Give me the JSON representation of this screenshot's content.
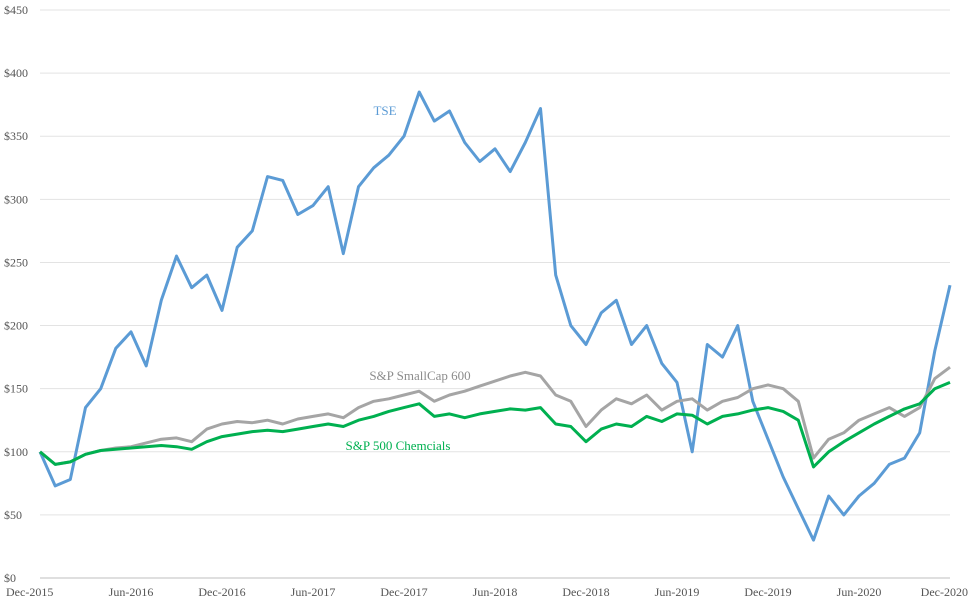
{
  "chart_data": {
    "type": "line",
    "title": "",
    "xlabel": "",
    "ylabel": "",
    "ylim": [
      0,
      450
    ],
    "yticks": [
      0,
      50,
      100,
      150,
      200,
      250,
      300,
      350,
      400,
      450
    ],
    "ytick_labels": [
      "$0",
      "$50",
      "$100",
      "$150",
      "$200",
      "$250",
      "$300",
      "$350",
      "$400",
      "$450"
    ],
    "xlim": [
      "2015-12",
      "2020-12"
    ],
    "xtick_labels": [
      "Dec-2015",
      "Jun-2016",
      "Dec-2016",
      "Jun-2017",
      "Dec-2017",
      "Jun-2018",
      "Dec-2018",
      "Jun-2019",
      "Dec-2019",
      "Jun-2020",
      "Dec-2020"
    ],
    "grid": "horizontal",
    "legend": "none",
    "series": [
      {
        "name": "TSE",
        "color": "#5b9bd5",
        "points": [
          [
            "2015-12",
            100
          ],
          [
            "2016-01",
            73
          ],
          [
            "2016-02",
            78
          ],
          [
            "2016-03",
            135
          ],
          [
            "2016-04",
            150
          ],
          [
            "2016-05",
            182
          ],
          [
            "2016-06",
            195
          ],
          [
            "2016-07",
            168
          ],
          [
            "2016-08",
            220
          ],
          [
            "2016-09",
            255
          ],
          [
            "2016-10",
            230
          ],
          [
            "2016-11",
            240
          ],
          [
            "2016-12",
            212
          ],
          [
            "2017-01",
            262
          ],
          [
            "2017-02",
            275
          ],
          [
            "2017-03",
            318
          ],
          [
            "2017-04",
            315
          ],
          [
            "2017-05",
            288
          ],
          [
            "2017-06",
            295
          ],
          [
            "2017-07",
            310
          ],
          [
            "2017-08",
            257
          ],
          [
            "2017-09",
            310
          ],
          [
            "2017-10",
            325
          ],
          [
            "2017-11",
            335
          ],
          [
            "2017-12",
            350
          ],
          [
            "2018-01",
            385
          ],
          [
            "2018-02",
            362
          ],
          [
            "2018-03",
            370
          ],
          [
            "2018-04",
            345
          ],
          [
            "2018-05",
            330
          ],
          [
            "2018-06",
            340
          ],
          [
            "2018-07",
            322
          ],
          [
            "2018-08",
            345
          ],
          [
            "2018-09",
            372
          ],
          [
            "2018-10",
            240
          ],
          [
            "2018-11",
            200
          ],
          [
            "2018-12",
            185
          ],
          [
            "2019-01",
            210
          ],
          [
            "2019-02",
            220
          ],
          [
            "2019-03",
            185
          ],
          [
            "2019-04",
            200
          ],
          [
            "2019-05",
            170
          ],
          [
            "2019-06",
            155
          ],
          [
            "2019-07",
            100
          ],
          [
            "2019-08",
            185
          ],
          [
            "2019-09",
            175
          ],
          [
            "2019-10",
            200
          ],
          [
            "2019-11",
            140
          ],
          [
            "2019-12",
            110
          ],
          [
            "2020-01",
            80
          ],
          [
            "2020-02",
            55
          ],
          [
            "2020-03",
            30
          ],
          [
            "2020-04",
            65
          ],
          [
            "2020-05",
            50
          ],
          [
            "2020-06",
            65
          ],
          [
            "2020-07",
            75
          ],
          [
            "2020-08",
            90
          ],
          [
            "2020-09",
            95
          ],
          [
            "2020-10",
            115
          ],
          [
            "2020-11",
            180
          ],
          [
            "2020-12",
            232
          ]
        ]
      },
      {
        "name": "S&P SmallCap 600",
        "color": "#a5a5a5",
        "points": [
          [
            "2015-12",
            100
          ],
          [
            "2016-01",
            90
          ],
          [
            "2016-02",
            92
          ],
          [
            "2016-03",
            98
          ],
          [
            "2016-04",
            101
          ],
          [
            "2016-05",
            103
          ],
          [
            "2016-06",
            104
          ],
          [
            "2016-07",
            107
          ],
          [
            "2016-08",
            110
          ],
          [
            "2016-09",
            111
          ],
          [
            "2016-10",
            108
          ],
          [
            "2016-11",
            118
          ],
          [
            "2016-12",
            122
          ],
          [
            "2017-01",
            124
          ],
          [
            "2017-02",
            123
          ],
          [
            "2017-03",
            125
          ],
          [
            "2017-04",
            122
          ],
          [
            "2017-05",
            126
          ],
          [
            "2017-06",
            128
          ],
          [
            "2017-07",
            130
          ],
          [
            "2017-08",
            127
          ],
          [
            "2017-09",
            135
          ],
          [
            "2017-10",
            140
          ],
          [
            "2017-11",
            142
          ],
          [
            "2017-12",
            145
          ],
          [
            "2018-01",
            148
          ],
          [
            "2018-02",
            140
          ],
          [
            "2018-03",
            145
          ],
          [
            "2018-04",
            148
          ],
          [
            "2018-05",
            152
          ],
          [
            "2018-06",
            156
          ],
          [
            "2018-07",
            160
          ],
          [
            "2018-08",
            163
          ],
          [
            "2018-09",
            160
          ],
          [
            "2018-10",
            145
          ],
          [
            "2018-11",
            140
          ],
          [
            "2018-12",
            120
          ],
          [
            "2019-01",
            133
          ],
          [
            "2019-02",
            142
          ],
          [
            "2019-03",
            138
          ],
          [
            "2019-04",
            145
          ],
          [
            "2019-05",
            133
          ],
          [
            "2019-06",
            140
          ],
          [
            "2019-07",
            142
          ],
          [
            "2019-08",
            133
          ],
          [
            "2019-09",
            140
          ],
          [
            "2019-10",
            143
          ],
          [
            "2019-11",
            150
          ],
          [
            "2019-12",
            153
          ],
          [
            "2020-01",
            150
          ],
          [
            "2020-02",
            140
          ],
          [
            "2020-03",
            95
          ],
          [
            "2020-04",
            110
          ],
          [
            "2020-05",
            115
          ],
          [
            "2020-06",
            125
          ],
          [
            "2020-07",
            130
          ],
          [
            "2020-08",
            135
          ],
          [
            "2020-09",
            128
          ],
          [
            "2020-10",
            135
          ],
          [
            "2020-11",
            158
          ],
          [
            "2020-12",
            167
          ]
        ]
      },
      {
        "name": "S&P 500 Chemcials",
        "color": "#00b050",
        "points": [
          [
            "2015-12",
            100
          ],
          [
            "2016-01",
            90
          ],
          [
            "2016-02",
            92
          ],
          [
            "2016-03",
            98
          ],
          [
            "2016-04",
            101
          ],
          [
            "2016-05",
            102
          ],
          [
            "2016-06",
            103
          ],
          [
            "2016-07",
            104
          ],
          [
            "2016-08",
            105
          ],
          [
            "2016-09",
            104
          ],
          [
            "2016-10",
            102
          ],
          [
            "2016-11",
            108
          ],
          [
            "2016-12",
            112
          ],
          [
            "2017-01",
            114
          ],
          [
            "2017-02",
            116
          ],
          [
            "2017-03",
            117
          ],
          [
            "2017-04",
            116
          ],
          [
            "2017-05",
            118
          ],
          [
            "2017-06",
            120
          ],
          [
            "2017-07",
            122
          ],
          [
            "2017-08",
            120
          ],
          [
            "2017-09",
            125
          ],
          [
            "2017-10",
            128
          ],
          [
            "2017-11",
            132
          ],
          [
            "2017-12",
            135
          ],
          [
            "2018-01",
            138
          ],
          [
            "2018-02",
            128
          ],
          [
            "2018-03",
            130
          ],
          [
            "2018-04",
            127
          ],
          [
            "2018-05",
            130
          ],
          [
            "2018-06",
            132
          ],
          [
            "2018-07",
            134
          ],
          [
            "2018-08",
            133
          ],
          [
            "2018-09",
            135
          ],
          [
            "2018-10",
            122
          ],
          [
            "2018-11",
            120
          ],
          [
            "2018-12",
            108
          ],
          [
            "2019-01",
            118
          ],
          [
            "2019-02",
            122
          ],
          [
            "2019-03",
            120
          ],
          [
            "2019-04",
            128
          ],
          [
            "2019-05",
            124
          ],
          [
            "2019-06",
            130
          ],
          [
            "2019-07",
            129
          ],
          [
            "2019-08",
            122
          ],
          [
            "2019-09",
            128
          ],
          [
            "2019-10",
            130
          ],
          [
            "2019-11",
            133
          ],
          [
            "2019-12",
            135
          ],
          [
            "2020-01",
            132
          ],
          [
            "2020-02",
            125
          ],
          [
            "2020-03",
            88
          ],
          [
            "2020-04",
            100
          ],
          [
            "2020-05",
            108
          ],
          [
            "2020-06",
            115
          ],
          [
            "2020-07",
            122
          ],
          [
            "2020-08",
            128
          ],
          [
            "2020-09",
            134
          ],
          [
            "2020-10",
            138
          ],
          [
            "2020-11",
            150
          ],
          [
            "2020-12",
            155
          ]
        ]
      }
    ],
    "annotations": [
      {
        "text": "TSE",
        "series": 0
      },
      {
        "text": "S&P SmallCap 600",
        "series": 1
      },
      {
        "text": "S&P 500 Chemcials",
        "series": 2
      }
    ]
  }
}
